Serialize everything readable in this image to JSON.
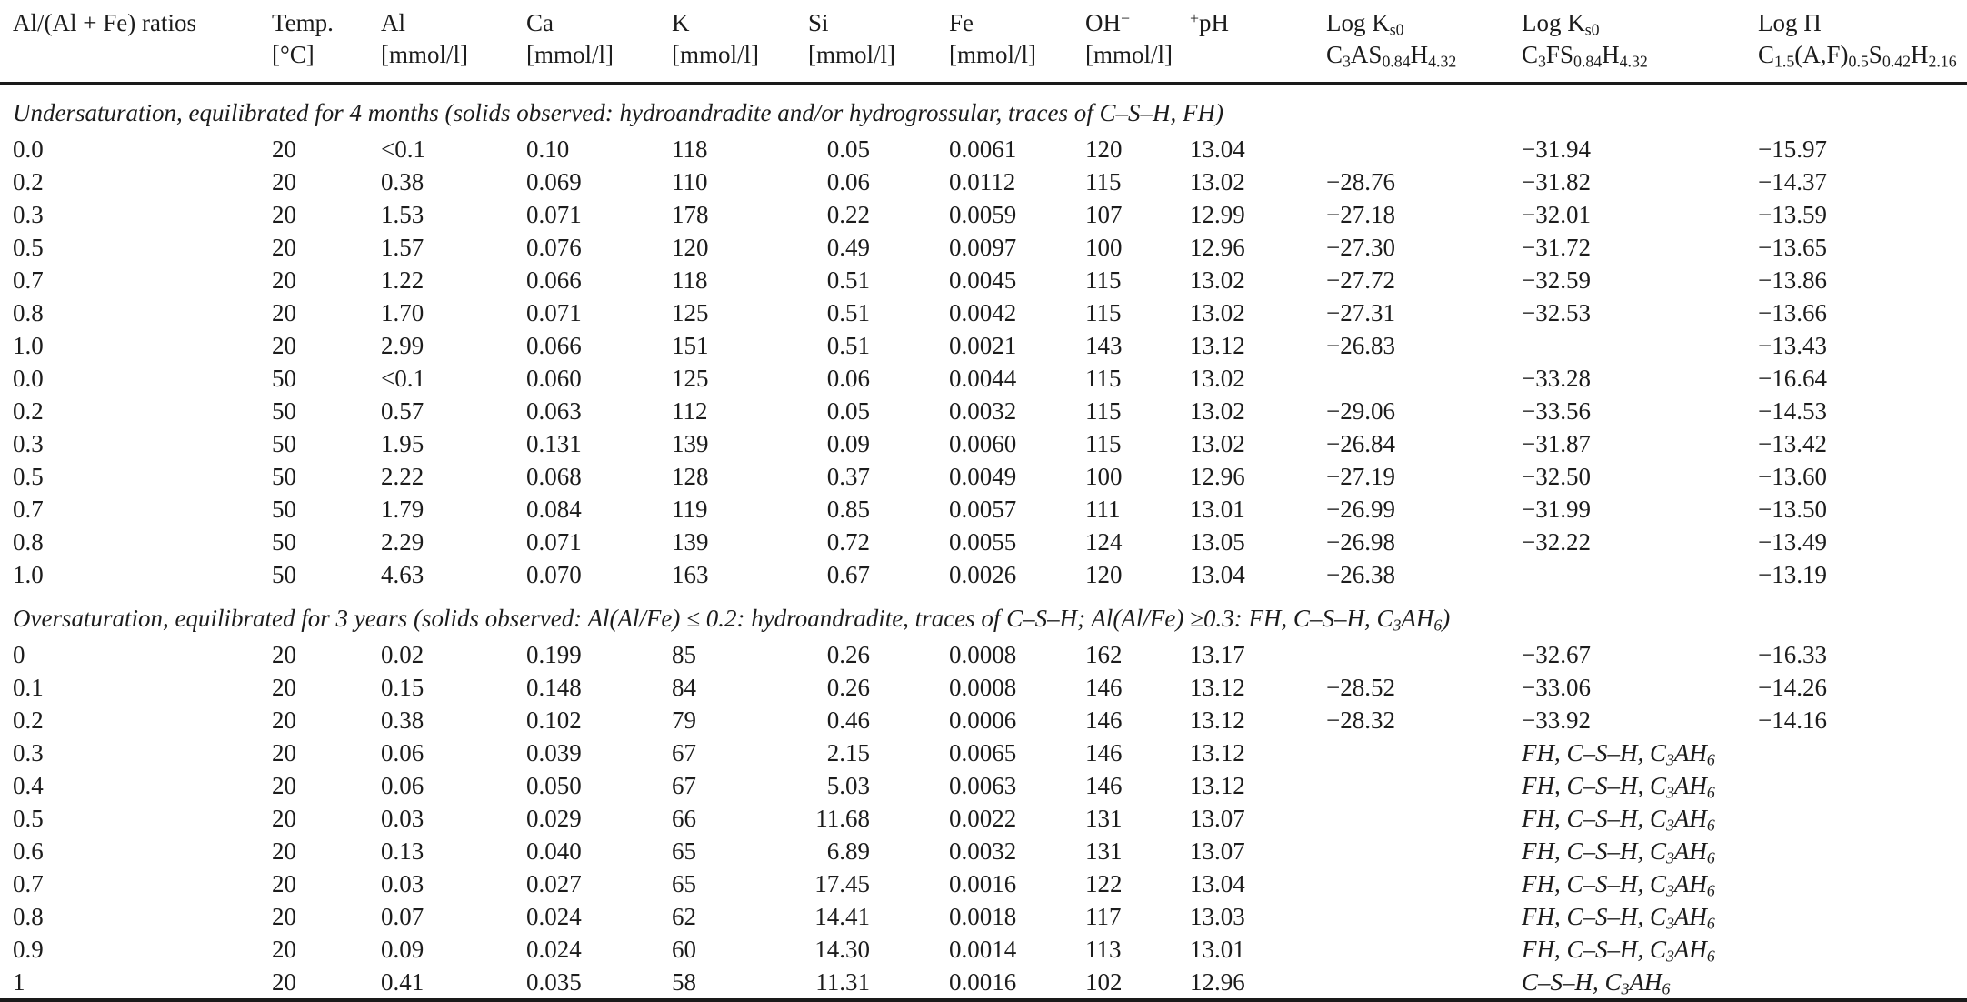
{
  "table": {
    "columns": [
      {
        "key": "ratio",
        "name": "Al/(Al + Fe) ratios",
        "unit": ""
      },
      {
        "key": "temp",
        "name": "Temp.",
        "unit": "[°C]"
      },
      {
        "key": "al",
        "name": "Al",
        "unit": "[mmol/l]"
      },
      {
        "key": "ca",
        "name": "Ca",
        "unit": "[mmol/l]"
      },
      {
        "key": "k",
        "name": "K",
        "unit": "[mmol/l]"
      },
      {
        "key": "si",
        "name": "Si",
        "unit": "[mmol/l]"
      },
      {
        "key": "fe",
        "name": "Fe",
        "unit": "[mmol/l]"
      },
      {
        "key": "oh",
        "name": "OH^−^",
        "unit": "[mmol/l]"
      },
      {
        "key": "ph",
        "name": "^+^pH",
        "unit": ""
      },
      {
        "key": "logks0-c3as",
        "name": "Log K~s0~",
        "unit": "C~3~AS~0.84~H~4.32~"
      },
      {
        "key": "logks0-c3fs",
        "name": "Log K~s0~",
        "unit": "C~3~FS~0.84~H~4.32~"
      },
      {
        "key": "logpi",
        "name": "Log Π",
        "unit": "C~1.5~(A,F)~0.5~S~0.42~H~2.16~"
      }
    ],
    "sections": [
      {
        "caption": "Undersaturation, equilibrated for 4 months (solids observed: hydroandradite and/or hydrogrossular, traces of C–S–H, FH)",
        "rows": [
          [
            "0.0",
            "20",
            "<0.1",
            "0.10",
            "118",
            "0.05",
            "0.0061",
            "120",
            "13.04",
            "",
            "−31.94",
            "−15.97"
          ],
          [
            "0.2",
            "20",
            "0.38",
            "0.069",
            "110",
            "0.06",
            "0.0112",
            "115",
            "13.02",
            "−28.76",
            "−31.82",
            "−14.37"
          ],
          [
            "0.3",
            "20",
            "1.53",
            "0.071",
            "178",
            "0.22",
            "0.0059",
            "107",
            "12.99",
            "−27.18",
            "−32.01",
            "−13.59"
          ],
          [
            "0.5",
            "20",
            "1.57",
            "0.076",
            "120",
            "0.49",
            "0.0097",
            "100",
            "12.96",
            "−27.30",
            "−31.72",
            "−13.65"
          ],
          [
            "0.7",
            "20",
            "1.22",
            "0.066",
            "118",
            "0.51",
            "0.0045",
            "115",
            "13.02",
            "−27.72",
            "−32.59",
            "−13.86"
          ],
          [
            "0.8",
            "20",
            "1.70",
            "0.071",
            "125",
            "0.51",
            "0.0042",
            "115",
            "13.02",
            "−27.31",
            "−32.53",
            "−13.66"
          ],
          [
            "1.0",
            "20",
            "2.99",
            "0.066",
            "151",
            "0.51",
            "0.0021",
            "143",
            "13.12",
            "−26.83",
            "",
            "−13.43"
          ],
          [
            "0.0",
            "50",
            "<0.1",
            "0.060",
            "125",
            "0.06",
            "0.0044",
            "115",
            "13.02",
            "",
            "−33.28",
            "−16.64"
          ],
          [
            "0.2",
            "50",
            "0.57",
            "0.063",
            "112",
            "0.05",
            "0.0032",
            "115",
            "13.02",
            "−29.06",
            "−33.56",
            "−14.53"
          ],
          [
            "0.3",
            "50",
            "1.95",
            "0.131",
            "139",
            "0.09",
            "0.0060",
            "115",
            "13.02",
            "−26.84",
            "−31.87",
            "−13.42"
          ],
          [
            "0.5",
            "50",
            "2.22",
            "0.068",
            "128",
            "0.37",
            "0.0049",
            "100",
            "12.96",
            "−27.19",
            "−32.50",
            "−13.60"
          ],
          [
            "0.7",
            "50",
            "1.79",
            "0.084",
            "119",
            "0.85",
            "0.0057",
            "111",
            "13.01",
            "−26.99",
            "−31.99",
            "−13.50"
          ],
          [
            "0.8",
            "50",
            "2.29",
            "0.071",
            "139",
            "0.72",
            "0.0055",
            "124",
            "13.05",
            "−26.98",
            "−32.22",
            "−13.49"
          ],
          [
            "1.0",
            "50",
            "4.63",
            "0.070",
            "163",
            "0.67",
            "0.0026",
            "120",
            "13.04",
            "−26.38",
            "",
            "−13.19"
          ]
        ]
      },
      {
        "caption": "Oversaturation, equilibrated for 3 years (solids observed: Al(Al/Fe) ≤ 0.2: hydroandradite, traces of C–S–H; Al(Al/Fe) ≥0.3: FH, C–S–H, C~3~AH~6~)",
        "rows": [
          [
            "0",
            "20",
            "0.02",
            "0.199",
            "85",
            "0.26",
            "0.0008",
            "162",
            "13.17",
            "",
            "−32.67",
            "−16.33"
          ],
          [
            "0.1",
            "20",
            "0.15",
            "0.148",
            "84",
            "0.26",
            "0.0008",
            "146",
            "13.12",
            "−28.52",
            "−33.06",
            "−14.26"
          ],
          [
            "0.2",
            "20",
            "0.38",
            "0.102",
            "79",
            "0.46",
            "0.0006",
            "146",
            "13.12",
            "−28.32",
            "−33.92",
            "−14.16"
          ],
          [
            "0.3",
            "20",
            "0.06",
            "0.039",
            "67",
            "2.15",
            "0.0065",
            "146",
            "13.12",
            "",
            "FH, C–S–H, C~3~AH~6~",
            ""
          ],
          [
            "0.4",
            "20",
            "0.06",
            "0.050",
            "67",
            "5.03",
            "0.0063",
            "146",
            "13.12",
            "",
            "FH, C–S–H, C~3~AH~6~",
            ""
          ],
          [
            "0.5",
            "20",
            "0.03",
            "0.029",
            "66",
            "11.68",
            "0.0022",
            "131",
            "13.07",
            "",
            "FH, C–S–H, C~3~AH~6~",
            ""
          ],
          [
            "0.6",
            "20",
            "0.13",
            "0.040",
            "65",
            "6.89",
            "0.0032",
            "131",
            "13.07",
            "",
            "FH, C–S–H, C~3~AH~6~",
            ""
          ],
          [
            "0.7",
            "20",
            "0.03",
            "0.027",
            "65",
            "17.45",
            "0.0016",
            "122",
            "13.04",
            "",
            "FH, C–S–H, C~3~AH~6~",
            ""
          ],
          [
            "0.8",
            "20",
            "0.07",
            "0.024",
            "62",
            "14.41",
            "0.0018",
            "117",
            "13.03",
            "",
            "FH, C–S–H, C~3~AH~6~",
            ""
          ],
          [
            "0.9",
            "20",
            "0.09",
            "0.024",
            "60",
            "14.30",
            "0.0014",
            "113",
            "13.01",
            "",
            "FH, C–S–H, C~3~AH~6~",
            ""
          ],
          [
            "1",
            "20",
            "0.41",
            "0.035",
            "58",
            "11.31",
            "0.0016",
            "102",
            "12.96",
            "",
            "C–S–H, C~3~AH~6~",
            ""
          ]
        ]
      }
    ]
  }
}
